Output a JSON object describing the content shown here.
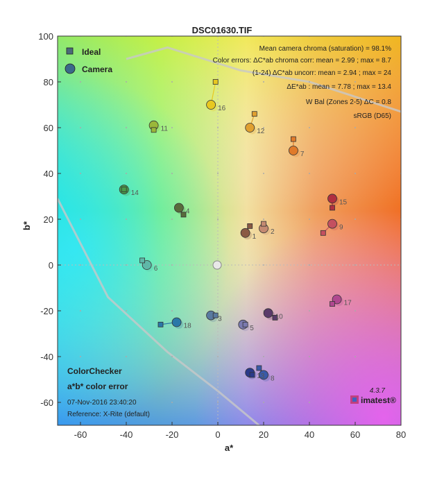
{
  "chart_data": {
    "type": "scatter",
    "title": "DSC01630.TIF",
    "xlabel": "a*",
    "ylabel": "b*",
    "xlim": [
      -70,
      80
    ],
    "ylim": [
      -70,
      100
    ],
    "xticks": [
      -60,
      -40,
      -20,
      0,
      20,
      40,
      60,
      80
    ],
    "yticks": [
      -60,
      -40,
      -20,
      0,
      20,
      40,
      60,
      80,
      100
    ],
    "legend": [
      {
        "marker": "square",
        "label": "Ideal"
      },
      {
        "marker": "circle",
        "label": "Camera"
      }
    ],
    "series": [
      {
        "name": "Ideal",
        "marker": "square"
      },
      {
        "name": "Camera",
        "marker": "circle"
      }
    ],
    "patches": [
      {
        "id": "1",
        "ideal": [
          14,
          17
        ],
        "camera": [
          12,
          14
        ],
        "color": "#8a5a44"
      },
      {
        "id": "2",
        "ideal": [
          20,
          18
        ],
        "camera": [
          20,
          16
        ],
        "color": "#c48a72"
      },
      {
        "id": "3",
        "ideal": [
          -1,
          -22
        ],
        "camera": [
          -3,
          -22
        ],
        "color": "#5a7aa0"
      },
      {
        "id": "4",
        "ideal": [
          -15,
          22
        ],
        "camera": [
          -17,
          25
        ],
        "color": "#596b3c"
      },
      {
        "id": "5",
        "ideal": [
          12,
          -26
        ],
        "camera": [
          11,
          -26
        ],
        "color": "#7a7ab0"
      },
      {
        "id": "6",
        "ideal": [
          -33,
          2
        ],
        "camera": [
          -31,
          0
        ],
        "color": "#5fb8a8"
      },
      {
        "id": "7",
        "ideal": [
          33,
          55
        ],
        "camera": [
          33,
          50
        ],
        "color": "#e07a2a"
      },
      {
        "id": "8",
        "ideal": [
          18,
          -45
        ],
        "camera": [
          20,
          -48
        ],
        "color": "#3a5aa8"
      },
      {
        "id": "9",
        "ideal": [
          46,
          14
        ],
        "camera": [
          50,
          18
        ],
        "color": "#c45060"
      },
      {
        "id": "10",
        "ideal": [
          25,
          -23
        ],
        "camera": [
          22,
          -21
        ],
        "color": "#5a3a6a"
      },
      {
        "id": "11",
        "ideal": [
          -28,
          59
        ],
        "camera": [
          -28,
          61
        ],
        "color": "#9ab83a"
      },
      {
        "id": "12",
        "ideal": [
          16,
          66
        ],
        "camera": [
          14,
          60
        ],
        "color": "#e0a030"
      },
      {
        "id": "13",
        "ideal": [
          15,
          -48
        ],
        "camera": [
          14,
          -47
        ],
        "color": "#2a3a8a"
      },
      {
        "id": "14",
        "ideal": [
          -41,
          33
        ],
        "camera": [
          -41,
          33
        ],
        "color": "#4a9a4a"
      },
      {
        "id": "15",
        "ideal": [
          50,
          25
        ],
        "camera": [
          50,
          29
        ],
        "color": "#b03040"
      },
      {
        "id": "16",
        "ideal": [
          -1,
          80
        ],
        "camera": [
          -3,
          70
        ],
        "color": "#e8c820"
      },
      {
        "id": "17",
        "ideal": [
          50,
          -17
        ],
        "camera": [
          52,
          -15
        ],
        "color": "#b04890"
      },
      {
        "id": "18",
        "ideal": [
          -25,
          -26
        ],
        "camera": [
          -18,
          -25
        ],
        "color": "#2a78a8"
      }
    ],
    "annotations": {
      "info_lines": [
        "Mean camera chroma (saturation) = 98.1%",
        "Color errors: ΔC*ab chroma corr: mean = 2.99 ; max = 8.7",
        "(1-24)   ΔC*ab uncorr: mean = 2.94 ; max = 24",
        "ΔE*ab : mean = 7.78 ; max = 13.4",
        "W Bal (Zones 2-5) ΔC = 0.8",
        "sRGB (D65)"
      ],
      "footer_title": "ColorChecker",
      "footer_subtitle": "a*b* color error",
      "date": "07-Nov-2016 23:40:20",
      "reference": "Reference: X-Rite (default)",
      "version": "4.3.7",
      "brand": "imatest®"
    }
  }
}
